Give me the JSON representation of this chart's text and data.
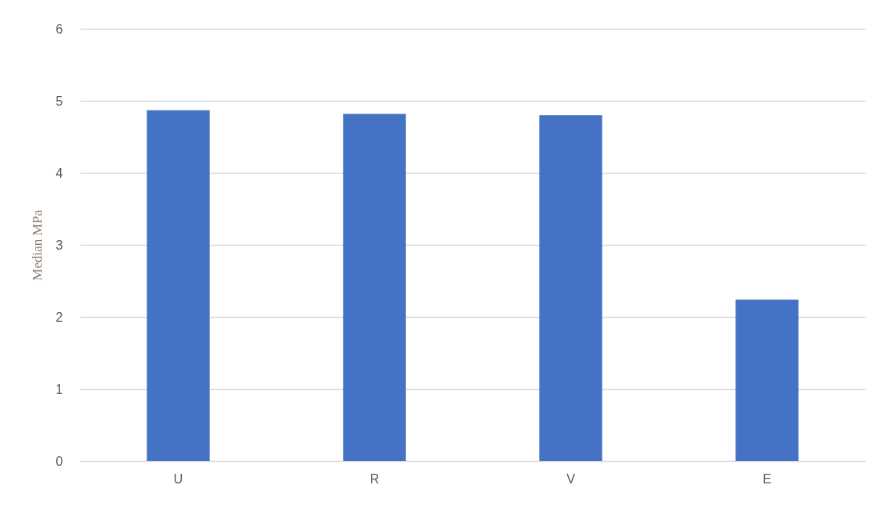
{
  "chart_data": {
    "type": "bar",
    "ylabel": "Median MPa",
    "categories": [
      "U",
      "R",
      "V",
      "E"
    ],
    "values": [
      4.87,
      4.82,
      4.8,
      2.24
    ],
    "color": "#4472c4",
    "ylim": [
      0,
      6
    ],
    "yticks": [
      0,
      1,
      2,
      3,
      4,
      5,
      6
    ],
    "grid": "y"
  }
}
